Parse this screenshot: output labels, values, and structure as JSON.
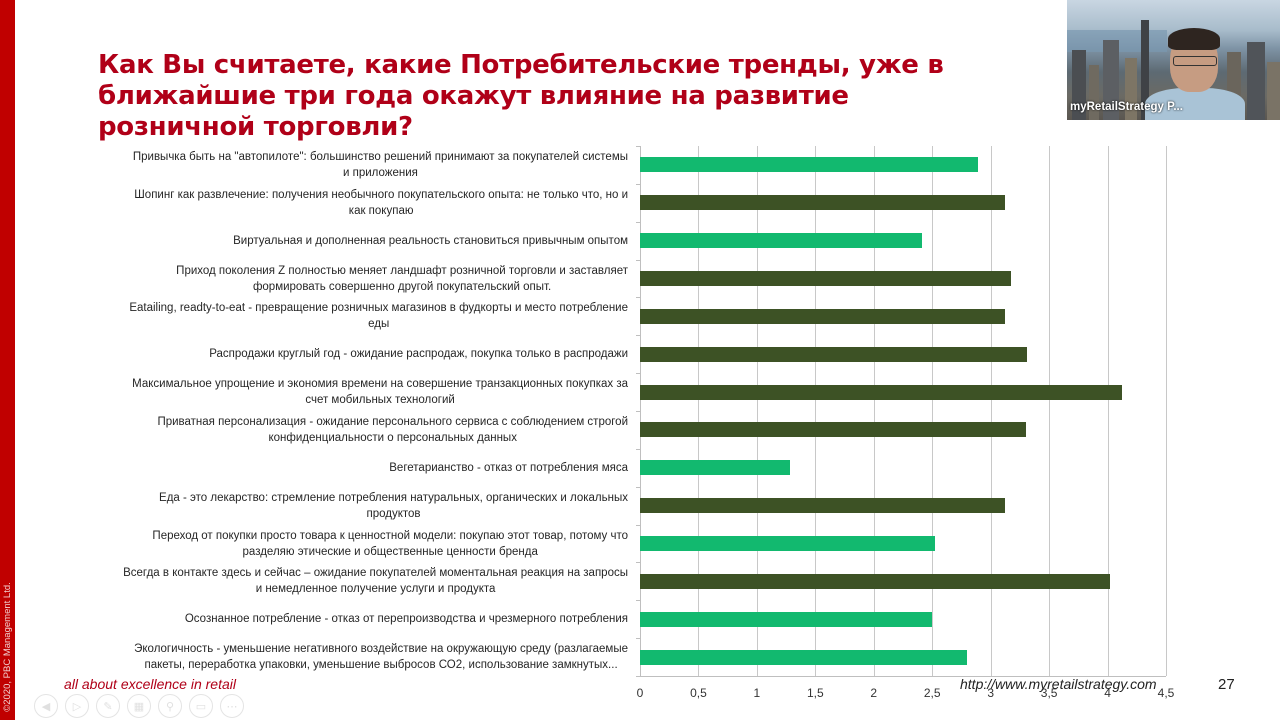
{
  "slide": {
    "title": "Как Вы считаете, какие Потребительские тренды, уже в ближайшие три года окажут влияние на развитие розничной торговли?",
    "copyright": "©2020, PBC Management Ltd.",
    "tagline": "all about excellence in retail",
    "website": "http://www.myretailstrategy.com",
    "page_number": "27"
  },
  "webcam": {
    "participant_name": "myRetailStrategy P..."
  },
  "presentation_controls": [
    {
      "name": "previous-slide",
      "icon": "◀"
    },
    {
      "name": "next-slide",
      "icon": "▷"
    },
    {
      "name": "pen",
      "icon": "✎"
    },
    {
      "name": "slides-overview",
      "icon": "▦"
    },
    {
      "name": "zoom",
      "icon": "⚲"
    },
    {
      "name": "subtitles",
      "icon": "▭"
    },
    {
      "name": "more-options",
      "icon": "⋯"
    }
  ],
  "colors": {
    "accent_red": "#c00000",
    "title_red": "#b00018",
    "bar_light_green": "#12b96f",
    "bar_dark_green": "#3d5225"
  },
  "chart_data": {
    "type": "bar",
    "orientation": "horizontal",
    "title": "",
    "xlabel": "",
    "ylabel": "",
    "xlim": [
      0,
      4.5
    ],
    "x_ticks": [
      "0",
      "0,5",
      "1",
      "1,5",
      "2",
      "2,5",
      "3",
      "3,5",
      "4",
      "4,5"
    ],
    "grid": true,
    "legend": false,
    "categories": [
      "Привычка быть на \"автопилоте\": большинство решений принимают за покупателей системы и приложения",
      "Шопинг как развлечение:  получения необычного  покупательского опыта: не только что, но и как покупаю",
      "Виртуальная и дополненная реальность становиться привычным опытом",
      "Приход поколения Z полностью меняет ландшафт розничной торговли и заставляет формировать совершенно другой покупательский опыт.",
      "Eatailing, readty-to-eat  - превращение розничных магазинов в фудкорты и место потребление еды",
      "Распродажи круглый год - ожидание распродаж, покупка только в распродажи",
      "Максимальное упрощение и экономия времени на совершение транзакционных покупках за счет мобильных технологий",
      "Приватная персонализация - ожидание персонального сервиса с соблюдением строгой конфиденциальности о персональных данных",
      "Вегетарианство - отказ от потребления мяса",
      "Еда - это лекарство:  стремление потребления натуральных, органических и локальных продуктов",
      "Переход от покупки просто товара к ценностной модели: покупаю этот товар, потому что разделяю этические и общественные ценности бренда",
      "Всегда в контакте здесь и сейчас – ожидание покупателей моментальная реакция на запросы и немедленное получение услуги и продукта",
      "Осознанное потребление - отказ от перепроизводства и чрезмерного потребления",
      "Экологичность - уменьшение негативного воздействие на окружающую среду (разлагаемые пакеты, переработка упаковки, уменьшение выбросов СО2, использование замкнутых..."
    ],
    "values": [
      2.89,
      3.12,
      2.41,
      3.17,
      3.12,
      3.31,
      4.12,
      3.3,
      1.28,
      3.12,
      2.52,
      4.02,
      2.5,
      2.8
    ],
    "bar_colors": [
      "light",
      "dark",
      "light",
      "dark",
      "dark",
      "dark",
      "dark",
      "dark",
      "light",
      "dark",
      "light",
      "dark",
      "light",
      "light"
    ],
    "label_lines": [
      [
        "Привычка быть на \"автопилоте\": большинство решений принимают за покупателей системы",
        "и приложения"
      ],
      [
        "Шопинг как развлечение:  получения необычного  покупательского опыта: не только что, но и",
        "как покупаю"
      ],
      [
        "Виртуальная и дополненная реальность становиться привычным опытом"
      ],
      [
        "Приход поколения Z полностью меняет ландшафт розничной торговли и заставляет",
        "формировать совершенно другой покупательский опыт."
      ],
      [
        "Eatailing, readty-to-eat  - превращение розничных магазинов в фудкорты и место потребление",
        "еды"
      ],
      [
        "Распродажи круглый год - ожидание распродаж, покупка только в распродажи"
      ],
      [
        "Максимальное упрощение и экономия времени на совершение транзакционных покупках за",
        "счет мобильных технологий"
      ],
      [
        "Приватная персонализация - ожидание персонального сервиса с соблюдением строгой",
        "конфиденциальности о персональных данных"
      ],
      [
        "Вегетарианство - отказ от потребления мяса"
      ],
      [
        "Еда - это лекарство:  стремление потребления натуральных, органических и локальных",
        "продуктов"
      ],
      [
        "Переход от покупки просто товара к ценностной модели: покупаю этот товар, потому что",
        "разделяю этические и общественные ценности бренда"
      ],
      [
        "Всегда в контакте здесь и сейчас – ожидание покупателей моментальная реакция на запросы",
        "и немедленное получение услуги и продукта"
      ],
      [
        "Осознанное потребление - отказ от перепроизводства и чрезмерного потребления"
      ],
      [
        "Экологичность - уменьшение негативного воздействие на окружающую среду (разлагаемые",
        "пакеты, переработка упаковки, уменьшение выбросов СО2, использование замкнутых..."
      ]
    ]
  }
}
